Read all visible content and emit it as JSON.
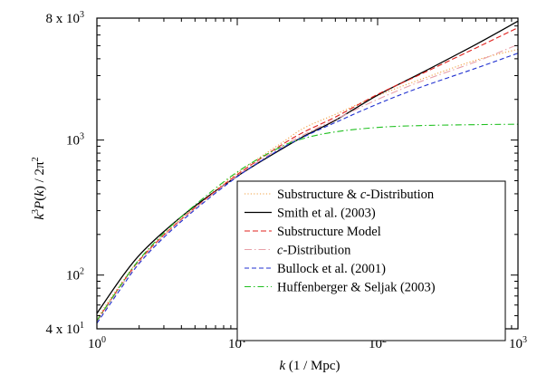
{
  "chart_data": {
    "type": "line",
    "x_scale": "log",
    "y_scale": "log",
    "xlim": [
      1,
      1000
    ],
    "ylim": [
      40,
      8000
    ],
    "xlabel": {
      "var": "k",
      "unit": " (1 / Mpc)"
    },
    "ylabel": {
      "text": "k³P(k) / 2π²"
    },
    "x_ticks": [
      {
        "value": 1,
        "base": "10",
        "exp": "0"
      },
      {
        "value": 10,
        "base": "10",
        "exp": "1"
      },
      {
        "value": 100,
        "base": "10",
        "exp": "2"
      },
      {
        "value": 1000,
        "base": "10",
        "exp": "3"
      }
    ],
    "y_ticks": [
      {
        "value": 40,
        "mant": "4 x ",
        "base": "10",
        "exp": "1"
      },
      {
        "value": 100,
        "mant": "",
        "base": "10",
        "exp": "2"
      },
      {
        "value": 1000,
        "mant": "",
        "base": "10",
        "exp": "3"
      },
      {
        "value": 8000,
        "mant": "8 x ",
        "base": "10",
        "exp": "3"
      }
    ],
    "legend_position": "bottom-right",
    "series": [
      {
        "name": "Substructure & c-Distribution",
        "legend_parts": [
          [
            "Substructure & ",
            false
          ],
          [
            "c",
            true
          ],
          [
            "-Distribution",
            false
          ]
        ],
        "color": "#f0a040",
        "dash": "1.2,2.2",
        "points": [
          [
            1,
            48
          ],
          [
            1.5,
            88
          ],
          [
            2,
            130
          ],
          [
            3,
            200
          ],
          [
            5,
            320
          ],
          [
            10,
            570
          ],
          [
            20,
            930
          ],
          [
            30,
            1230
          ],
          [
            50,
            1550
          ],
          [
            100,
            2130
          ],
          [
            200,
            2800
          ],
          [
            500,
            3900
          ],
          [
            1000,
            4700
          ]
        ]
      },
      {
        "name": "Smith et al. (2003)",
        "legend_parts": [
          [
            "Smith et al. (2003)",
            false
          ]
        ],
        "color": "#000000",
        "dash": "",
        "points": [
          [
            1,
            52
          ],
          [
            1.5,
            96
          ],
          [
            2,
            140
          ],
          [
            3,
            210
          ],
          [
            5,
            325
          ],
          [
            10,
            540
          ],
          [
            20,
            840
          ],
          [
            30,
            1070
          ],
          [
            50,
            1400
          ],
          [
            100,
            2150
          ],
          [
            200,
            3100
          ],
          [
            500,
            5100
          ],
          [
            1000,
            7600
          ]
        ]
      },
      {
        "name": "Substructure Model",
        "legend_parts": [
          [
            "Substructure Model",
            false
          ]
        ],
        "color": "#e0201c",
        "dash": "6,3",
        "points": [
          [
            1,
            46
          ],
          [
            1.5,
            86
          ],
          [
            2,
            128
          ],
          [
            3,
            198
          ],
          [
            5,
            315
          ],
          [
            10,
            555
          ],
          [
            20,
            900
          ],
          [
            30,
            1150
          ],
          [
            50,
            1480
          ],
          [
            100,
            2180
          ],
          [
            200,
            3050
          ],
          [
            500,
            4800
          ],
          [
            1000,
            6800
          ]
        ]
      },
      {
        "name": "c-Distribution",
        "legend_parts": [
          [
            "c",
            true
          ],
          [
            "-Distribution",
            false
          ]
        ],
        "color": "#e8a0a8",
        "dash": "8,3,1.5,3",
        "points": [
          [
            1,
            45
          ],
          [
            1.5,
            84
          ],
          [
            2,
            125
          ],
          [
            3,
            195
          ],
          [
            5,
            312
          ],
          [
            10,
            545
          ],
          [
            20,
            870
          ],
          [
            30,
            1100
          ],
          [
            50,
            1420
          ],
          [
            100,
            2000
          ],
          [
            200,
            2700
          ],
          [
            500,
            3800
          ],
          [
            1000,
            5100
          ]
        ]
      },
      {
        "name": "Bullock et al. (2001)",
        "legend_parts": [
          [
            "Bullock et al. (2001)",
            false
          ]
        ],
        "color": "#2030d0",
        "dash": "5,3",
        "points": [
          [
            1,
            44
          ],
          [
            1.5,
            81
          ],
          [
            2,
            122
          ],
          [
            3,
            190
          ],
          [
            5,
            305
          ],
          [
            10,
            535
          ],
          [
            20,
            850
          ],
          [
            30,
            1060
          ],
          [
            50,
            1350
          ],
          [
            100,
            1850
          ],
          [
            200,
            2450
          ],
          [
            500,
            3400
          ],
          [
            1000,
            4400
          ]
        ]
      },
      {
        "name": "Huffenberger & Seljak (2003)",
        "legend_parts": [
          [
            "Huffenberger & Seljak (2003)",
            false
          ]
        ],
        "color": "#20c020",
        "dash": "7,3,1.5,3",
        "points": [
          [
            1,
            46
          ],
          [
            1.5,
            86
          ],
          [
            2,
            130
          ],
          [
            3,
            205
          ],
          [
            5,
            330
          ],
          [
            10,
            580
          ],
          [
            20,
            880
          ],
          [
            30,
            1030
          ],
          [
            50,
            1150
          ],
          [
            100,
            1240
          ],
          [
            200,
            1280
          ],
          [
            500,
            1300
          ],
          [
            1000,
            1310
          ]
        ]
      }
    ]
  }
}
